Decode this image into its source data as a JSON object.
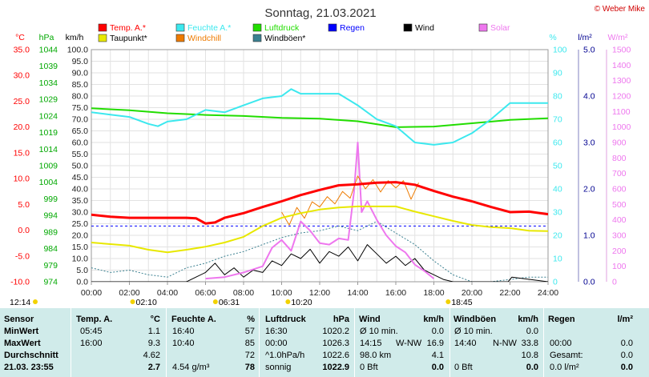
{
  "colors": {
    "temp": "#ff0000",
    "taupunkt": "#e8e800",
    "feuchte": "#3ce8ee",
    "windchill": "#ee7b00",
    "luftdruck": "#22dd00",
    "windboeen": "#3a8090",
    "regen": "#0000ff",
    "wind": "#000000",
    "solar": "#ee77ee",
    "hpa_axis": "#00a800",
    "table_bg": "#d0ebea"
  },
  "chart_data": {
    "type": "line",
    "title": "Sonntag, 21.03.2021",
    "credit": "© Weber Mike",
    "x_labels": [
      "00:00",
      "02:00",
      "04:00",
      "06:00",
      "08:00",
      "10:00",
      "12:00",
      "14:00",
      "16:00",
      "18:00",
      "20:00",
      "22:00",
      "24:00"
    ],
    "xlim": [
      0,
      24
    ],
    "axes": {
      "temp_c": {
        "unit": "°C",
        "ylim": [
          -10,
          35
        ],
        "ticks": [
          "35.0",
          "30.0",
          "25.0",
          "20.0",
          "15.0",
          "10.0",
          "5.0",
          "0.0",
          "-5.0",
          "-10.0"
        ]
      },
      "pressure_hpa": {
        "unit": "hPa",
        "ylim": [
          974,
          1044
        ],
        "ticks": [
          "1044",
          "1039",
          "1034",
          "1029",
          "1024",
          "1019",
          "1014",
          "1009",
          "1004",
          "999",
          "994",
          "989",
          "984",
          "979",
          "974"
        ]
      },
      "wind_kmh": {
        "unit": "km/h",
        "ylim": [
          0,
          100
        ],
        "ticks": [
          "100.0",
          "95.0",
          "90.0",
          "85.0",
          "80.0",
          "75.0",
          "70.0",
          "65.0",
          "60.0",
          "55.0",
          "50.0",
          "45.0",
          "40.0",
          "35.0",
          "30.0",
          "25.0",
          "20.0",
          "15.0",
          "10.0",
          "5.0",
          "0.0"
        ]
      },
      "humidity_pct": {
        "unit": "%",
        "ylim": [
          0,
          100
        ],
        "ticks": [
          "100",
          "90",
          "80",
          "70",
          "60",
          "50",
          "40",
          "30",
          "20",
          "10",
          "0"
        ]
      },
      "rain_lm2": {
        "unit": "l/m²",
        "ylim": [
          0,
          5
        ],
        "ticks": [
          "5.0",
          "4.0",
          "3.0",
          "2.0",
          "1.0",
          "0.0"
        ]
      },
      "solar_wm2": {
        "unit": "W/m²",
        "ylim": [
          0,
          1500
        ],
        "ticks": [
          "1500",
          "1400",
          "1300",
          "1200",
          "1100",
          "1000",
          "900",
          "800",
          "700",
          "600",
          "500",
          "400",
          "300",
          "200",
          "100",
          "0"
        ]
      }
    },
    "legend": [
      {
        "name": "Temp. A.*",
        "key": "temp"
      },
      {
        "name": "Feuchte A.*",
        "key": "feuchte"
      },
      {
        "name": "Luftdruck",
        "key": "luftdruck"
      },
      {
        "name": "Regen",
        "key": "regen"
      },
      {
        "name": "Wind",
        "key": "wind"
      },
      {
        "name": "Solar",
        "key": "solar"
      },
      {
        "name": "Taupunkt*",
        "key": "taupunkt"
      },
      {
        "name": "Windchill",
        "key": "windchill"
      },
      {
        "name": "Windböen*",
        "key": "windboeen"
      }
    ],
    "series": [
      {
        "name": "Temp. A.*",
        "axis": "temp_c",
        "color": "temp",
        "width": 3,
        "x": [
          0,
          1,
          2,
          3,
          4,
          5,
          5.5,
          6,
          6.5,
          7,
          8,
          9,
          10,
          11,
          12,
          13,
          14,
          15,
          16,
          17,
          18,
          19,
          20,
          21,
          22,
          23,
          24
        ],
        "y": [
          3.0,
          2.6,
          2.4,
          2.4,
          2.4,
          2.4,
          2.3,
          1.3,
          1.5,
          2.4,
          3.3,
          4.5,
          5.6,
          6.8,
          7.8,
          8.7,
          8.9,
          9.2,
          9.3,
          8.8,
          7.6,
          6.5,
          5.6,
          4.5,
          3.5,
          3.6,
          3.1
        ]
      },
      {
        "name": "Taupunkt*",
        "axis": "temp_c",
        "color": "taupunkt",
        "width": 2,
        "x": [
          0,
          1,
          2,
          3,
          4,
          5,
          6,
          7,
          8,
          9,
          10,
          11,
          12,
          13,
          14,
          15,
          16,
          17,
          18,
          19,
          20,
          21,
          22,
          23,
          24
        ],
        "y": [
          -2.4,
          -2.7,
          -3.0,
          -3.8,
          -4.3,
          -3.8,
          -3.2,
          -2.4,
          -1.3,
          0.8,
          2.4,
          3.3,
          4.0,
          4.4,
          4.6,
          4.6,
          4.6,
          3.6,
          2.7,
          1.8,
          1.0,
          0.6,
          0.4,
          -0.1,
          -0.2
        ]
      },
      {
        "name": "Feuchte A.*",
        "axis": "humidity_pct",
        "color": "feuchte",
        "width": 2,
        "x": [
          0,
          1,
          2,
          3,
          3.5,
          4,
          5,
          6,
          7,
          8,
          9,
          10,
          10.5,
          11,
          12,
          13,
          14,
          15,
          16,
          17,
          18,
          19,
          20,
          21,
          22,
          23,
          24
        ],
        "y": [
          73,
          72,
          71,
          68,
          67,
          69,
          70,
          74,
          73,
          76,
          79,
          80,
          83,
          81,
          81,
          81,
          76,
          70,
          67,
          60,
          59,
          60,
          64,
          70,
          77,
          77,
          77
        ]
      },
      {
        "name": "Luftdruck",
        "axis": "pressure_hpa",
        "color": "luftdruck",
        "width": 2,
        "x": [
          0,
          2,
          4,
          6,
          8,
          10,
          12,
          14,
          16,
          18,
          20,
          22,
          24
        ],
        "y": [
          1026.3,
          1025.7,
          1024.8,
          1024.3,
          1024.0,
          1023.4,
          1023.2,
          1022.4,
          1020.6,
          1020.8,
          1021.8,
          1022.8,
          1023.3
        ]
      },
      {
        "name": "Windchill",
        "axis": "temp_c",
        "color": "windchill",
        "width": 1,
        "x": [
          10,
          10.4,
          10.8,
          11.2,
          11.6,
          12,
          12.4,
          12.8,
          13.2,
          13.6,
          14,
          14.4,
          14.8,
          15.2,
          15.6,
          16,
          16.4,
          16.8,
          17.2
        ],
        "y": [
          3.5,
          1.0,
          4.4,
          2.3,
          5.5,
          4.5,
          6.5,
          5.1,
          7.5,
          6.2,
          10.5,
          8.0,
          9.8,
          7.4,
          9.6,
          8.2,
          9.6,
          6.0,
          9.2
        ]
      },
      {
        "name": "Solar",
        "axis": "solar_wm2",
        "color": "solar",
        "width": 2,
        "x": [
          6,
          7,
          8,
          9,
          9.5,
          10,
          10.5,
          11,
          11.5,
          12,
          12.5,
          13,
          13.5,
          13.8,
          14,
          14.2,
          14.5,
          15,
          15.5,
          16,
          16.5,
          17,
          17.5,
          18
        ],
        "y": [
          20,
          30,
          60,
          100,
          220,
          270,
          200,
          390,
          330,
          250,
          240,
          280,
          270,
          580,
          900,
          450,
          520,
          400,
          300,
          230,
          190,
          110,
          70,
          20
        ]
      },
      {
        "name": "Wind",
        "axis": "wind_kmh",
        "color": "wind",
        "width": 1,
        "x": [
          0,
          3,
          5,
          5.5,
          6,
          6.5,
          7,
          7.5,
          8,
          8.5,
          9,
          9.5,
          10,
          10.5,
          11,
          11.5,
          12,
          12.5,
          13,
          13.5,
          14,
          14.5,
          15,
          15.5,
          16,
          16.5,
          17,
          17.5,
          18,
          18.5,
          19,
          21.9,
          22.1,
          24
        ],
        "y": [
          0,
          0,
          0,
          2,
          4,
          8,
          3,
          6,
          2,
          5,
          4,
          9,
          7,
          12,
          10,
          14,
          8,
          13,
          11,
          15,
          9,
          16,
          12,
          8,
          11,
          7,
          10,
          5,
          3,
          1,
          0,
          0,
          2,
          0
        ]
      },
      {
        "name": "Windböen*",
        "axis": "wind_kmh",
        "color": "windboeen",
        "width": 1,
        "x": [
          0,
          1,
          2,
          3,
          4,
          5,
          6,
          7,
          8,
          9,
          10,
          11,
          12,
          13,
          14,
          15,
          16,
          17,
          18,
          19,
          20,
          21,
          22,
          23,
          24
        ],
        "y": [
          6,
          4,
          5,
          3,
          2,
          6,
          8,
          11,
          13,
          16,
          19,
          21,
          22,
          24,
          22,
          26,
          21,
          16,
          9,
          3,
          0,
          0,
          1,
          2,
          2
        ]
      }
    ],
    "regen_dashed_line": 1.2,
    "bottom_markers": [
      {
        "label": "12:14",
        "hour": 0.0
      },
      {
        "label": "02:10",
        "hour": 2.17
      },
      {
        "label": "06:31",
        "hour": 6.52
      },
      {
        "label": "10:20",
        "hour": 10.33
      },
      {
        "label": "18:45",
        "hour": 18.75
      }
    ]
  },
  "table": {
    "headers": {
      "sensor": "Sensor",
      "temp": "Temp. A.",
      "temp_unit": "°C",
      "feuchte": "Feuchte A.",
      "feuchte_unit": "%",
      "druck": "Luftdruck",
      "druck_unit": "hPa",
      "wind": "Wind",
      "wind_unit": "km/h",
      "boeen": "Windböen",
      "boeen_unit": "km/h",
      "regen": "Regen",
      "regen_unit": "l/m²"
    },
    "rows": [
      {
        "label": "MinWert",
        "temp_time": "05:45",
        "temp_val": "1.1",
        "feuchte_time": "16:40",
        "feuchte_val": "57",
        "druck_time": "16:30",
        "druck_val": "1020.2",
        "wind_time": "Ø 10 min.",
        "wind_dir": "",
        "wind_val": "0.0",
        "boeen_time": "Ø 10 min.",
        "boeen_dir": "",
        "boeen_val": "0.0",
        "regen_time": "",
        "regen_val": ""
      },
      {
        "label": "MaxWert",
        "temp_time": "16:00",
        "temp_val": "9.3",
        "feuchte_time": "10:40",
        "feuchte_val": "85",
        "druck_time": "00:00",
        "druck_val": "1026.3",
        "wind_time": "14:15",
        "wind_dir": "W-NW",
        "wind_val": "16.9",
        "boeen_time": "14:40",
        "boeen_dir": "N-NW",
        "boeen_val": "33.8",
        "regen_time": "00:00",
        "regen_val": "0.0"
      },
      {
        "label": "Durchschnitt",
        "temp_time": "",
        "temp_val": "4.62",
        "feuchte_time": "",
        "feuchte_val": "72",
        "druck_time": "^1.0hPa/h",
        "druck_val": "1022.6",
        "wind_time": "98.0 km",
        "wind_dir": "",
        "wind_val": "4.1",
        "boeen_time": "",
        "boeen_dir": "",
        "boeen_val": "10.8",
        "regen_time": "Gesamt:",
        "regen_val": "0.0"
      },
      {
        "label": "21.03.  23:55",
        "temp_time": "",
        "temp_val": "2.7",
        "feuchte_time": "4.54 g/m³",
        "feuchte_val": "78",
        "druck_time": "sonnig",
        "druck_val": "1022.9",
        "wind_time": "0 Bft",
        "wind_dir": "",
        "wind_val": "0.0",
        "boeen_time": "0 Bft",
        "boeen_dir": "",
        "boeen_val": "0.0",
        "regen_time": "0.0 l/m²",
        "regen_val": "0.0"
      }
    ]
  }
}
